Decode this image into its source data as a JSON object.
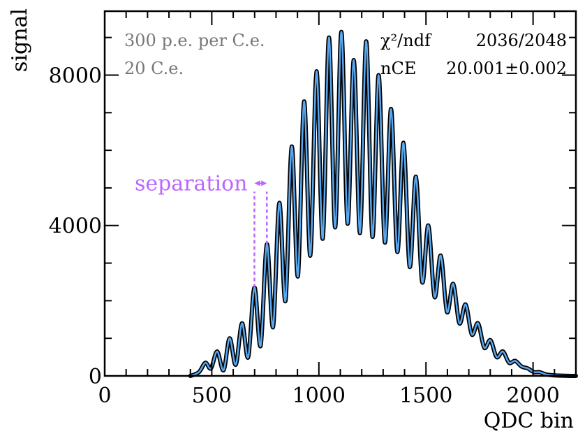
{
  "chart_data": {
    "type": "line",
    "title": "",
    "xlabel": "QDC bin",
    "ylabel": "signal",
    "xlim": [
      0,
      2200
    ],
    "ylim": [
      0,
      9700
    ],
    "x_ticks": [
      0,
      500,
      1000,
      1500,
      2000
    ],
    "x_tick_labels": [
      "0",
      "500",
      "1000",
      "1500",
      "2000"
    ],
    "y_ticks": [
      0,
      4000,
      8000
    ],
    "y_tick_labels": [
      "0",
      "4000",
      "8000"
    ],
    "grid": false,
    "legend": "none",
    "series": [
      {
        "role": "data histogram",
        "color": "#000000",
        "x": [
          400,
          440,
          470,
          496,
          525,
          555,
          583,
          612,
          641,
          670,
          699,
          728,
          757,
          786,
          815,
          844,
          873,
          902,
          931,
          960,
          989,
          1018,
          1047,
          1076,
          1105,
          1134,
          1163,
          1192,
          1221,
          1250,
          1279,
          1308,
          1337,
          1366,
          1395,
          1424,
          1453,
          1482,
          1511,
          1540,
          1569,
          1598,
          1627,
          1656,
          1685,
          1714,
          1743,
          1772,
          1801,
          1830,
          1859,
          1888,
          1917,
          1946,
          1975,
          2004,
          2030,
          2060,
          2100,
          2150,
          2200
        ],
        "values": [
          0,
          100,
          350,
          200,
          650,
          150,
          1000,
          300,
          1400,
          500,
          2350,
          800,
          3500,
          1300,
          4600,
          2000,
          6100,
          2650,
          7300,
          3200,
          8100,
          3650,
          9000,
          3950,
          9150,
          4050,
          8400,
          3800,
          8900,
          3700,
          8000,
          3550,
          7100,
          3300,
          6200,
          2900,
          5300,
          2500,
          4000,
          2100,
          3200,
          1700,
          2450,
          1400,
          1900,
          1100,
          1400,
          750,
          950,
          500,
          650,
          350,
          400,
          250,
          200,
          100,
          100,
          40,
          15,
          5,
          0
        ]
      },
      {
        "role": "fit",
        "color": "#5aa8f0",
        "x": [
          400,
          440,
          470,
          496,
          525,
          555,
          583,
          612,
          641,
          670,
          699,
          728,
          757,
          786,
          815,
          844,
          873,
          902,
          931,
          960,
          989,
          1018,
          1047,
          1076,
          1105,
          1134,
          1163,
          1192,
          1221,
          1250,
          1279,
          1308,
          1337,
          1366,
          1395,
          1424,
          1453,
          1482,
          1511,
          1540,
          1569,
          1598,
          1627,
          1656,
          1685,
          1714,
          1743,
          1772,
          1801,
          1830,
          1859,
          1888,
          1917,
          1946,
          1975,
          2004,
          2030,
          2060,
          2100,
          2150,
          2200
        ],
        "values": [
          0,
          100,
          350,
          200,
          650,
          150,
          1000,
          300,
          1400,
          500,
          2350,
          800,
          3500,
          1300,
          4600,
          2000,
          6100,
          2650,
          7300,
          3200,
          8100,
          3650,
          9000,
          3950,
          9150,
          4050,
          8400,
          3800,
          8900,
          3700,
          8000,
          3550,
          7100,
          3300,
          6200,
          2900,
          5300,
          2500,
          4000,
          2100,
          3200,
          1700,
          2450,
          1400,
          1900,
          1100,
          1400,
          750,
          950,
          500,
          650,
          350,
          400,
          250,
          200,
          100,
          100,
          40,
          15,
          5,
          0
        ]
      }
    ],
    "annotations": {
      "left_lines": [
        "300 p.e. per C.e.",
        "20 C.e."
      ],
      "chi2_label": "χ²/ndf",
      "chi2_value": "2036/2048",
      "nce_label": "nCE",
      "nce_value": "20.001±0.002",
      "separation_label": "separation",
      "separation_color": "#bb66ff",
      "separation_x": [
        699,
        757
      ],
      "separation_y_bottom": 2350,
      "separation_y_top": 4900
    }
  }
}
